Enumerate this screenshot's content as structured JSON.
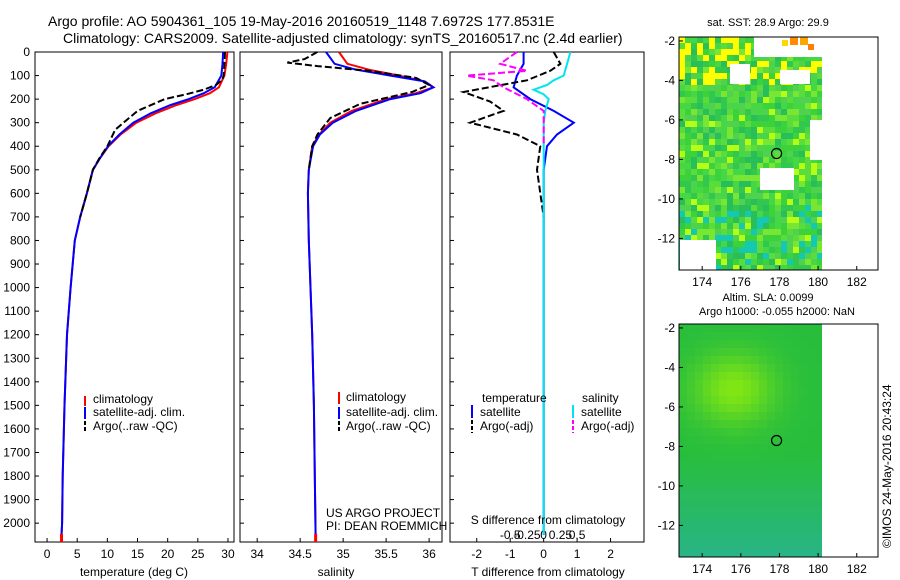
{
  "header": {
    "line1": "Argo profile: AO 5904361_105 19-May-2016 20160519_1148 7.6972S 177.8531E",
    "line2": "Climatology: CARS2009. Satellite-adjusted climatology: synTS_20160517.nc (2.4d earlier)"
  },
  "stamp": "©IMOS 24-May-2016 20:43:24",
  "colors": {
    "climatology": "#ff0000",
    "satellite": "#0000ff",
    "argo": "#000000",
    "sal_satellite": "#00e5ee",
    "sal_argo": "#ff00ff"
  },
  "chart_data": [
    {
      "id": "temperature",
      "type": "line",
      "xlabel": "temperature (deg C)",
      "ylabel": "",
      "xlim": [
        -2,
        31
      ],
      "xticks": [
        0,
        5,
        10,
        15,
        20,
        25,
        30
      ],
      "ylim": [
        2080,
        0
      ],
      "yticks": [
        0,
        100,
        200,
        300,
        400,
        500,
        600,
        700,
        800,
        900,
        1000,
        1100,
        1200,
        1300,
        1400,
        1500,
        1600,
        1700,
        1800,
        1900,
        2000
      ],
      "legend": {
        "placement": "lower-middle",
        "entries": [
          "climatology",
          "satellite-adj. clim.",
          "Argo(..raw -QC)"
        ]
      },
      "series": [
        {
          "name": "climatology",
          "x": [
            29.9,
            29.7,
            29.4,
            28.5,
            27,
            24.5,
            21.5,
            18,
            14.8,
            12.2,
            10.2,
            8.8,
            7.6,
            6.6,
            5.5,
            4.6,
            3.9,
            3.3,
            2.9,
            2.6,
            2.5,
            2.4
          ],
          "y": [
            0,
            50,
            100,
            150,
            175,
            200,
            225,
            260,
            300,
            350,
            400,
            450,
            500,
            600,
            700,
            800,
            1000,
            1200,
            1500,
            1800,
            2000,
            2050
          ]
        },
        {
          "name": "satellite-adj. clim.",
          "x": [
            29.2,
            29.1,
            28.9,
            27.8,
            26,
            23.5,
            20.5,
            17.2,
            14.3,
            12,
            10.1,
            8.8,
            7.6,
            6.6,
            5.5,
            4.6,
            3.9,
            3.3,
            2.9,
            2.6,
            2.5,
            2.4
          ],
          "y": [
            0,
            50,
            100,
            150,
            175,
            200,
            225,
            260,
            300,
            350,
            400,
            450,
            500,
            600,
            700,
            800,
            1000,
            1200,
            1500,
            1800,
            2000,
            2050
          ]
        },
        {
          "name": "Argo(..raw -QC)",
          "x": [
            29.5,
            29.4,
            29.3,
            29,
            28,
            26,
            23,
            19.5,
            15,
            11.3,
            10,
            8.7,
            7.6,
            6.6,
            5.5
          ],
          "y": [
            0,
            50,
            100,
            120,
            140,
            160,
            180,
            200,
            250,
            330,
            400,
            450,
            500,
            600,
            700
          ]
        }
      ]
    },
    {
      "id": "salinity",
      "type": "line",
      "xlabel": "salinity",
      "ylabel": "",
      "xlim": [
        33.8,
        36.15
      ],
      "xticks": [
        34,
        34.5,
        35,
        35.5,
        36
      ],
      "ylim": [
        2080,
        0
      ],
      "legend": {
        "placement": "lower-middle",
        "entries": [
          "climatology",
          "satellite-adj. clim.",
          "Argo(..raw -QC)"
        ]
      },
      "series": [
        {
          "name": "climatology",
          "x": [
            34.95,
            35.05,
            35.3,
            35.65,
            35.95,
            36.05,
            35.85,
            35.5,
            35.1,
            34.85,
            34.72,
            34.64,
            34.6,
            34.59,
            34.6,
            34.62,
            34.64,
            34.66,
            34.67,
            34.68
          ],
          "y": [
            0,
            50,
            75,
            100,
            125,
            150,
            175,
            200,
            250,
            300,
            350,
            400,
            500,
            600,
            800,
            1000,
            1200,
            1500,
            1800,
            2050
          ]
        },
        {
          "name": "satellite-adj. clim.",
          "x": [
            34.8,
            34.9,
            35.15,
            35.55,
            35.95,
            36.05,
            35.9,
            35.55,
            35.15,
            34.88,
            34.73,
            34.65,
            34.6,
            34.59,
            34.6,
            34.62,
            34.64,
            34.66,
            34.67,
            34.68
          ],
          "y": [
            0,
            50,
            75,
            100,
            125,
            150,
            175,
            200,
            250,
            300,
            350,
            400,
            500,
            600,
            800,
            1000,
            1200,
            1500,
            1800,
            2050
          ]
        },
        {
          "name": "Argo(..raw -QC)",
          "x": [
            34.7,
            34.55,
            34.35,
            34.7,
            35.3,
            35.85,
            36.0,
            35.8,
            35.2,
            34.85,
            34.7,
            34.64,
            34.6
          ],
          "y": [
            0,
            30,
            45,
            60,
            80,
            110,
            140,
            170,
            220,
            280,
            350,
            400,
            500
          ]
        }
      ]
    },
    {
      "id": "differences",
      "type": "line",
      "xlabel": "T difference from climatology",
      "ylabel": "",
      "xlim": [
        -2.8,
        3.0
      ],
      "xticks": [
        -2,
        -1,
        0,
        1,
        2
      ],
      "x2label": "S difference from climatology",
      "x2ticks": [
        -0.5,
        -0.25,
        0,
        0.25,
        0.5
      ],
      "ylim": [
        2080,
        0
      ],
      "legend": {
        "placement": "lower",
        "headings": [
          "temperature",
          "salinity"
        ],
        "entries": [
          "satellite",
          "Argo(-adj)",
          "satellite",
          "Argo(-adj)"
        ]
      },
      "annotation": [
        "US ARGO PROJECT",
        "PI: DEAN ROEMMICH"
      ],
      "series": [
        {
          "name": "temperature satellite",
          "x": [
            -0.6,
            -0.6,
            -0.8,
            -0.9,
            -0.4,
            0.3,
            0.9,
            0.4,
            0.1,
            0,
            0,
            0,
            0,
            0,
            0
          ],
          "y": [
            0,
            50,
            100,
            150,
            200,
            250,
            300,
            350,
            400,
            500,
            700,
            1000,
            1400,
            1800,
            2050
          ]
        },
        {
          "name": "temperature Argo(-adj)",
          "x": [
            0.3,
            0.5,
            0.2,
            -0.5,
            -2.4,
            -1.6,
            -1.2,
            -2.2,
            -0.8,
            -0.1,
            -0.2,
            -0.1,
            0
          ],
          "y": [
            0,
            50,
            80,
            120,
            170,
            210,
            250,
            300,
            350,
            400,
            500,
            600,
            700
          ]
        },
        {
          "name": "salinity satellite",
          "x": [
            0.8,
            0.7,
            0.6,
            0.3,
            0.1,
            -0.3,
            0,
            0.15,
            0.05,
            0,
            0,
            0,
            0,
            0,
            0
          ],
          "y": [
            0,
            50,
            100,
            120,
            140,
            160,
            180,
            200,
            250,
            300,
            400,
            500,
            1000,
            1500,
            2050
          ]
        },
        {
          "name": "salinity Argo(-adj)",
          "x": [
            -0.8,
            -1.3,
            -0.5,
            -2.3,
            -1.5,
            -1.2,
            -0.5,
            0,
            0,
            0
          ],
          "y": [
            0,
            50,
            80,
            100,
            120,
            150,
            200,
            250,
            300,
            400
          ]
        }
      ]
    },
    {
      "id": "sst-map",
      "type": "heatmap",
      "title": "sat. SST: 28.9 Argo: 29.9",
      "xlim": [
        172.8,
        183.1
      ],
      "xticks": [
        174,
        176,
        178,
        180,
        182
      ],
      "ylim": [
        -13.6,
        -1.8
      ],
      "yticks": [
        -2,
        -4,
        -6,
        -8,
        -10,
        -12
      ],
      "marker": {
        "x": 177.85,
        "y": -7.7
      }
    },
    {
      "id": "sla-map",
      "type": "heatmap",
      "title": "Altim. SLA: 0.0099",
      "subtitle": "Argo h1000: -0.055 h2000: NaN",
      "xlim": [
        172.8,
        183.1
      ],
      "xticks": [
        174,
        176,
        178,
        180,
        182
      ],
      "ylim": [
        -13.6,
        -1.8
      ],
      "yticks": [
        -2,
        -4,
        -6,
        -8,
        -10,
        -12
      ],
      "marker": {
        "x": 177.85,
        "y": -7.7
      }
    }
  ]
}
